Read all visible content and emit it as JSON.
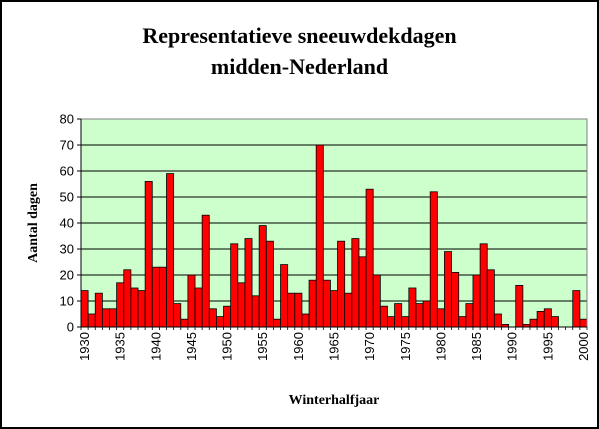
{
  "chart_data": {
    "type": "bar",
    "title_lines": [
      "Representatieve sneeuwdekdagen",
      "midden-Nederland"
    ],
    "xlabel": "Winterhalfjaar",
    "ylabel": "Aantal dagen",
    "ylim": [
      0,
      80
    ],
    "yticks": [
      0,
      10,
      20,
      30,
      40,
      50,
      60,
      70,
      80
    ],
    "xticks": [
      "1930",
      "1935",
      "1940",
      "1945",
      "1950",
      "1955",
      "1960",
      "1965",
      "1970",
      "1975",
      "1980",
      "1985",
      "1990",
      "1995",
      "2000"
    ],
    "grid": true,
    "legend": "none",
    "colors": {
      "bar": "#ff0000",
      "plot_background": "#ccffcc",
      "gridline": "#000000"
    },
    "x": [
      1930,
      1931,
      1932,
      1933,
      1934,
      1935,
      1936,
      1937,
      1938,
      1939,
      1940,
      1941,
      1942,
      1943,
      1944,
      1945,
      1946,
      1947,
      1948,
      1949,
      1950,
      1951,
      1952,
      1953,
      1954,
      1955,
      1956,
      1957,
      1958,
      1959,
      1960,
      1961,
      1962,
      1963,
      1964,
      1965,
      1966,
      1967,
      1968,
      1969,
      1970,
      1971,
      1972,
      1973,
      1974,
      1975,
      1976,
      1977,
      1978,
      1979,
      1980,
      1981,
      1982,
      1983,
      1984,
      1985,
      1986,
      1987,
      1988,
      1989,
      1990,
      1991,
      1992,
      1993,
      1994,
      1995,
      1996,
      1997,
      1998,
      1999,
      2000
    ],
    "values": [
      14,
      5,
      13,
      7,
      7,
      17,
      22,
      15,
      14,
      56,
      23,
      23,
      59,
      9,
      3,
      20,
      15,
      43,
      7,
      4,
      8,
      32,
      17,
      34,
      12,
      39,
      33,
      3,
      24,
      13,
      13,
      5,
      18,
      70,
      18,
      14,
      33,
      13,
      34,
      27,
      53,
      20,
      8,
      4,
      9,
      4,
      15,
      9,
      10,
      52,
      7,
      29,
      21,
      4,
      9,
      20,
      32,
      22,
      5,
      1,
      0,
      16,
      1,
      3,
      6,
      7,
      4,
      0,
      0,
      14,
      3
    ]
  }
}
